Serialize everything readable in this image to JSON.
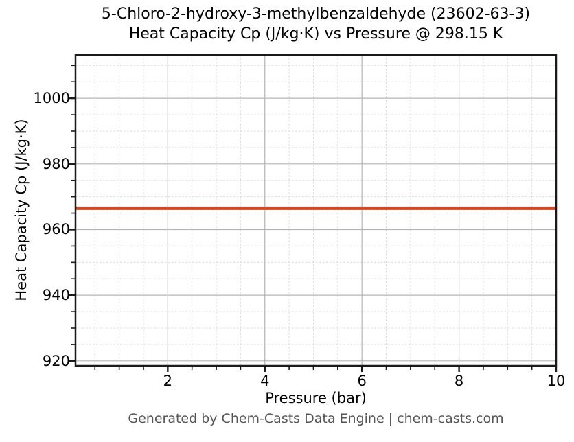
{
  "footer": {
    "text": "Generated by Chem-Casts Data Engine | chem-casts.com",
    "color": "#555555"
  },
  "chart_data": {
    "type": "line",
    "title": "5-Chloro-2-hydroxy-3-methylbenzaldehyde (23602-63-3)\nHeat Capacity Cp (J/kg·K) vs Pressure @ 298.15 K",
    "title_line1": "5-Chloro-2-hydroxy-3-methylbenzaldehyde (23602-63-3)",
    "title_line2": "Heat Capacity Cp (J/kg·K) vs Pressure @ 298.15 K",
    "xlabel": "Pressure (bar)",
    "ylabel": "Heat Capacity Cp (J/kg·K)",
    "xlim": [
      0.1,
      10
    ],
    "ylim": [
      918.5,
      1013.2
    ],
    "x_major_ticks": [
      2,
      4,
      6,
      8,
      10
    ],
    "x_minor_step": 0.5,
    "y_major_ticks": [
      920,
      940,
      960,
      980,
      1000
    ],
    "y_minor_step": 5,
    "grid": "on",
    "legend_position": "none",
    "series": [
      {
        "name": "Heat Capacity Cp",
        "x": [
          0.1,
          10
        ],
        "y": [
          966.5,
          966.5
        ],
        "color": "#d1491e",
        "linewidth": 5
      }
    ],
    "style": {
      "major_grid_color": "#b5b5b5",
      "minor_grid_color": "#dadada",
      "spine_color": "#1a1a1a",
      "background": "#ffffff"
    }
  }
}
